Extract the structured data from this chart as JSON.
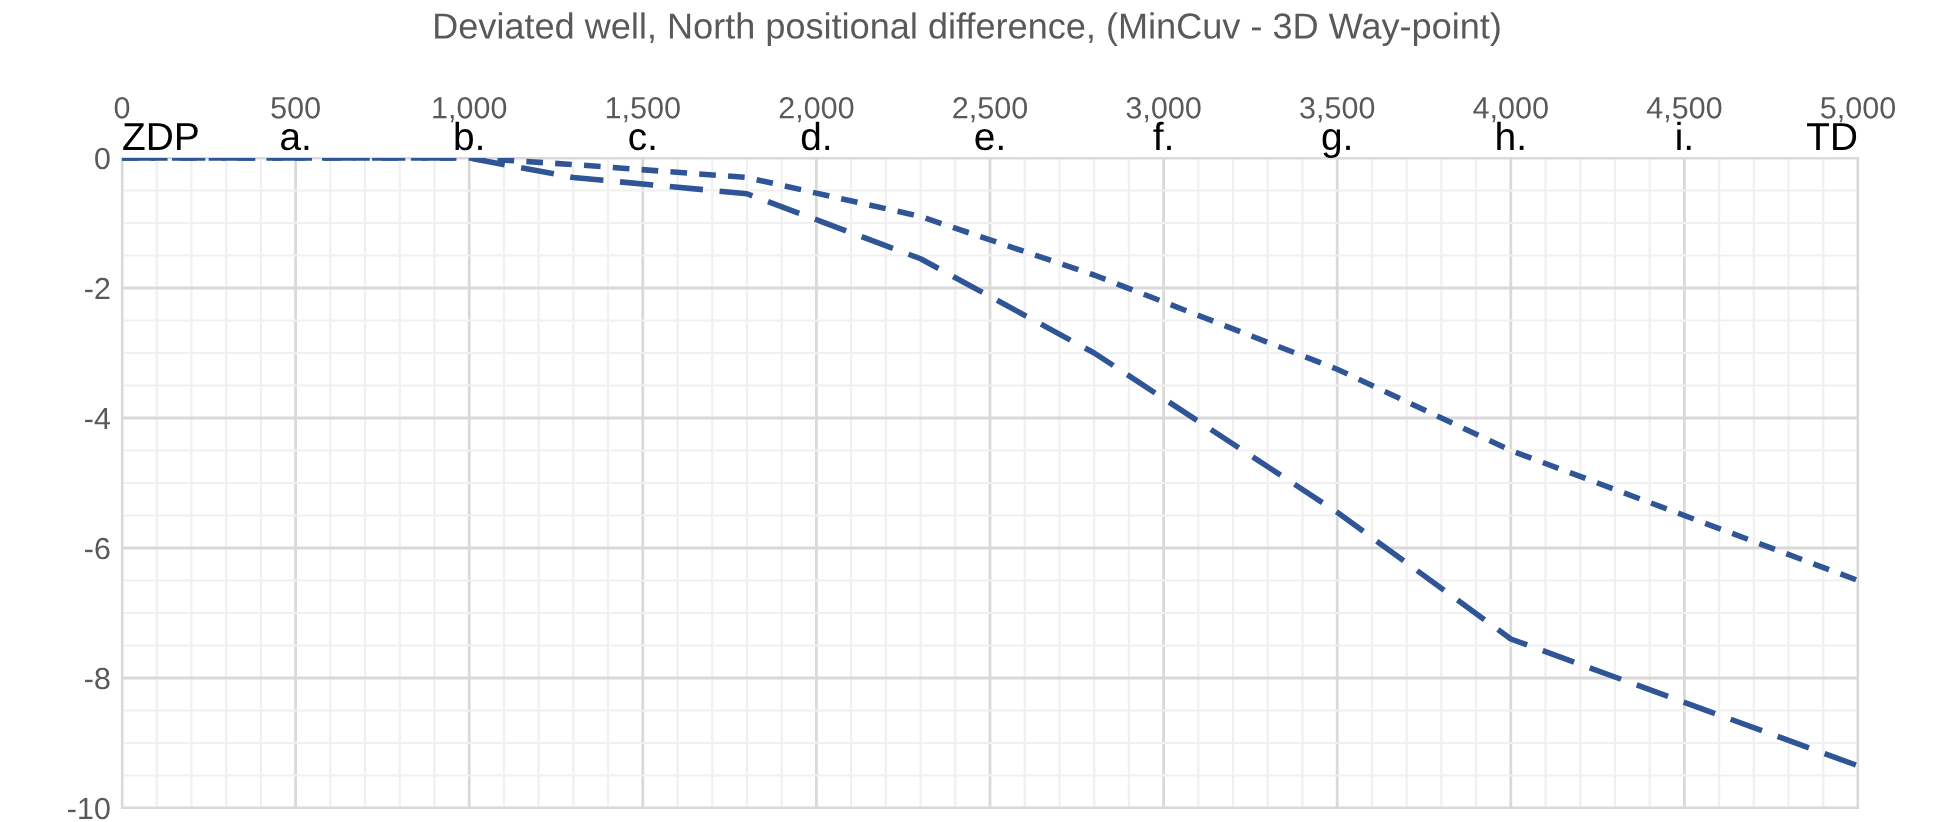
{
  "chart_data": {
    "type": "line",
    "title": "Deviated well, North positional difference, (MinCuv - 3D Way-point)",
    "x": [
      0,
      1000,
      1300,
      1800,
      2300,
      2800,
      3500,
      4000,
      5000
    ],
    "series": [
      {
        "color": "#2f5597",
        "line_style": "dashed",
        "values": [
          0,
          0,
          -0.3,
          -0.55,
          -1.55,
          -3.0,
          -5.45,
          -7.4,
          -9.35
        ]
      },
      {
        "color": "#2f5597",
        "line_style": "dotted",
        "values": [
          0,
          0,
          -0.1,
          -0.3,
          -0.9,
          -1.8,
          -3.25,
          -4.5,
          -6.5
        ]
      }
    ],
    "xlim": [
      0,
      5000
    ],
    "xticks": [
      0,
      500,
      {
        "value": 1000,
        "label": "1,000"
      },
      {
        "value": 1500,
        "label": "1,500"
      },
      {
        "value": 2000,
        "label": "2,000"
      },
      {
        "value": 2500,
        "label": "2,500"
      },
      {
        "value": 3000,
        "label": "3,000"
      },
      {
        "value": 3500,
        "label": "3,500"
      },
      {
        "value": 4000,
        "label": "4,000"
      },
      {
        "value": 4500,
        "label": "4,500"
      },
      {
        "value": 5000,
        "label": "5,000"
      }
    ],
    "ylim": [
      -10,
      0
    ],
    "yticks": [
      -10,
      -8,
      -6,
      -4,
      -2,
      0
    ],
    "grid": true,
    "legend": false,
    "marker": "none",
    "annotations": [
      "ZDP",
      "a.",
      "b.",
      "c.",
      "d.",
      "e.",
      "f.",
      "g.",
      "h.",
      "i.",
      "TD"
    ]
  }
}
